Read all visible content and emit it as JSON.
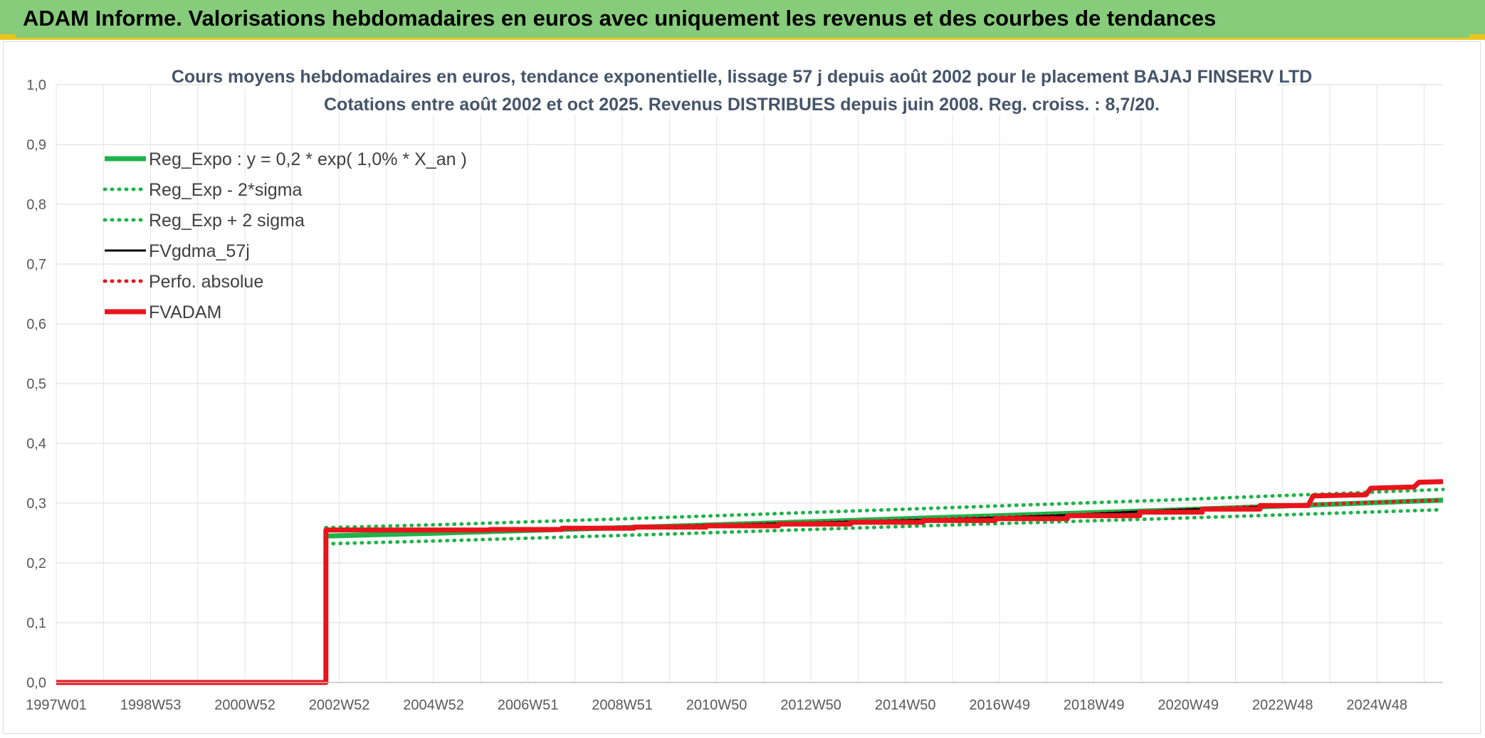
{
  "banner": {
    "title": "ADAM Informe. Valorisations hebdomadaires en euros avec uniquement les revenus et des courbes de tendances"
  },
  "colors": {
    "banner_bg": "#86cc7a",
    "accent_yellow": "#e9c51e",
    "trend_green": "#1db34a",
    "fvadam_red": "#e8141b",
    "fvgdma_black": "#000000",
    "title_text": "#44546a"
  },
  "chart_data": {
    "type": "line",
    "title": "Cours moyens hebdomadaires en euros, tendance exponentielle, lissage 57 j depuis août 2002 pour le placement BAJAJ FINSERV LTD",
    "subtitle": "Cotations entre août 2002 et oct 2025. Revenus DISTRIBUES depuis juin 2008. Reg. croiss. : 8,7/20.",
    "xlabel": "",
    "ylabel": "",
    "x_ticks": [
      "1997W01",
      "1998W53",
      "2000W52",
      "2002W52",
      "2004W52",
      "2006W51",
      "2008W51",
      "2010W50",
      "2012W50",
      "2014W50",
      "2016W49",
      "2018W49",
      "2020W49",
      "2022W48",
      "2024W48"
    ],
    "x_range": [
      1997.0,
      2025.8
    ],
    "y_ticks": [
      "0,0",
      "0,1",
      "0,2",
      "0,3",
      "0,4",
      "0,5",
      "0,6",
      "0,7",
      "0,8",
      "0,9",
      "1,0"
    ],
    "ylim": [
      0,
      1.0
    ],
    "grid": true,
    "legend_position": "top-left",
    "series": [
      {
        "name": "Reg_Expo : y = 0,2 * exp( 1,0% *  X_an )",
        "style": "solid-thick",
        "color": "#1db34a",
        "points": [
          [
            2002.6,
            0.245
          ],
          [
            2005,
            0.25
          ],
          [
            2010,
            0.262
          ],
          [
            2015,
            0.275
          ],
          [
            2020,
            0.288
          ],
          [
            2025.8,
            0.305
          ]
        ]
      },
      {
        "name": "Reg_Exp - 2*sigma",
        "style": "dotted",
        "color": "#1db34a",
        "points": [
          [
            2002.6,
            0.232
          ],
          [
            2005,
            0.237
          ],
          [
            2010,
            0.249
          ],
          [
            2015,
            0.262
          ],
          [
            2020,
            0.274
          ],
          [
            2025.8,
            0.289
          ]
        ]
      },
      {
        "name": "Reg_Exp + 2 sigma",
        "style": "dotted",
        "color": "#1db34a",
        "points": [
          [
            2002.6,
            0.259
          ],
          [
            2005,
            0.264
          ],
          [
            2010,
            0.277
          ],
          [
            2015,
            0.291
          ],
          [
            2020,
            0.305
          ],
          [
            2025.8,
            0.323
          ]
        ]
      },
      {
        "name": "FVgdma_57j",
        "style": "solid-thin",
        "color": "#000000",
        "points": [
          [
            1997.0,
            0.0
          ],
          [
            2002.6,
            0.0
          ],
          [
            2002.6,
            0.255
          ],
          [
            2006,
            0.255
          ],
          [
            2008,
            0.258
          ],
          [
            2010,
            0.262
          ],
          [
            2012,
            0.266
          ],
          [
            2014,
            0.27
          ],
          [
            2016,
            0.274
          ],
          [
            2018,
            0.28
          ],
          [
            2020,
            0.288
          ],
          [
            2021.5,
            0.292
          ],
          [
            2023.0,
            0.298
          ],
          [
            2023.1,
            0.313
          ],
          [
            2024.2,
            0.315
          ],
          [
            2024.3,
            0.325
          ],
          [
            2025.2,
            0.327
          ],
          [
            2025.3,
            0.335
          ],
          [
            2025.8,
            0.336
          ]
        ]
      },
      {
        "name": "Perfo. absolue",
        "style": "dotted",
        "color": "#e8141b",
        "points": [
          [
            2002.6,
            0.255
          ],
          [
            2006,
            0.255
          ],
          [
            2010,
            0.262
          ],
          [
            2014,
            0.27
          ],
          [
            2018,
            0.28
          ],
          [
            2022,
            0.295
          ],
          [
            2025.8,
            0.305
          ]
        ]
      },
      {
        "name": "FVADAM",
        "style": "solid-thick",
        "color": "#e8141b",
        "points": [
          [
            1997.0,
            0.0
          ],
          [
            2002.6,
            0.0
          ],
          [
            2002.6,
            0.255
          ],
          [
            2006,
            0.255
          ],
          [
            2006,
            0.256
          ],
          [
            2007.5,
            0.256
          ],
          [
            2007.5,
            0.258
          ],
          [
            2009,
            0.258
          ],
          [
            2009,
            0.26
          ],
          [
            2010.5,
            0.26
          ],
          [
            2010.5,
            0.262
          ],
          [
            2012,
            0.262
          ],
          [
            2012,
            0.265
          ],
          [
            2013.5,
            0.265
          ],
          [
            2013.5,
            0.268
          ],
          [
            2015,
            0.268
          ],
          [
            2015,
            0.271
          ],
          [
            2016.5,
            0.271
          ],
          [
            2016.5,
            0.274
          ],
          [
            2018,
            0.274
          ],
          [
            2018,
            0.279
          ],
          [
            2019.5,
            0.279
          ],
          [
            2019.5,
            0.285
          ],
          [
            2020.8,
            0.285
          ],
          [
            2020.8,
            0.29
          ],
          [
            2022,
            0.29
          ],
          [
            2022,
            0.296
          ],
          [
            2023.0,
            0.296
          ],
          [
            2023.1,
            0.312
          ],
          [
            2024.2,
            0.314
          ],
          [
            2024.3,
            0.325
          ],
          [
            2025.2,
            0.327
          ],
          [
            2025.3,
            0.335
          ],
          [
            2025.8,
            0.336
          ]
        ]
      }
    ]
  }
}
